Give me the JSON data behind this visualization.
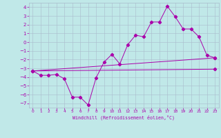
{
  "xlabel": "Windchill (Refroidissement éolien,°C)",
  "xlim": [
    -0.5,
    23.5
  ],
  "ylim": [
    -7.5,
    4.5
  ],
  "xticks": [
    0,
    1,
    2,
    3,
    4,
    5,
    6,
    7,
    8,
    9,
    10,
    11,
    12,
    13,
    14,
    15,
    16,
    17,
    18,
    19,
    20,
    21,
    22,
    23
  ],
  "yticks": [
    -7,
    -6,
    -5,
    -4,
    -3,
    -2,
    -1,
    0,
    1,
    2,
    3,
    4
  ],
  "bg_color": "#c0e8e8",
  "line_color": "#aa00aa",
  "grid_color": "#aabbcc",
  "series1_x": [
    0,
    1,
    2,
    3,
    4,
    5,
    6,
    7,
    8,
    9,
    10,
    11,
    12,
    13,
    14,
    15,
    16,
    17,
    18,
    19,
    20,
    21,
    22,
    23
  ],
  "series1_y": [
    -3.3,
    -3.8,
    -3.8,
    -3.7,
    -4.2,
    -6.3,
    -6.3,
    -7.2,
    -4.1,
    -2.3,
    -1.4,
    -2.5,
    -0.3,
    0.8,
    0.6,
    2.3,
    2.3,
    4.1,
    2.9,
    1.5,
    1.5,
    0.6,
    -1.5,
    -1.8
  ],
  "series2_x": [
    0,
    23
  ],
  "series2_y": [
    -3.3,
    -1.8
  ],
  "series3_x": [
    0,
    23
  ],
  "series3_y": [
    -3.3,
    -3.1
  ]
}
